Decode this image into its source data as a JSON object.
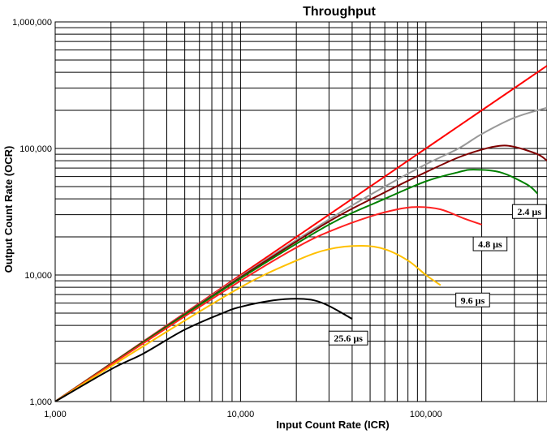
{
  "chart_data": {
    "type": "line",
    "title": "Throughput",
    "xlabel": "Input Count Rate (ICR)",
    "ylabel": "Output Count Rate (OCR)",
    "xscale": "log",
    "yscale": "log",
    "xlim": [
      1000,
      450000
    ],
    "ylim": [
      1000,
      1000000
    ],
    "grid": true,
    "x_tick_labels": [
      "1,000",
      "10,000",
      "100,000"
    ],
    "x_tick_values": [
      1000,
      10000,
      100000
    ],
    "y_tick_labels": [
      "1,000",
      "10,000",
      "100,000",
      "1,000,000"
    ],
    "y_tick_values": [
      1000,
      10000,
      100000,
      1000000
    ],
    "series": [
      {
        "color": "#ff0000",
        "x": [
          1000,
          3000,
          10000,
          30000,
          100000,
          200000,
          450000
        ],
        "y": [
          1000,
          3000,
          10000,
          30000,
          100000,
          200000,
          450000
        ]
      },
      {
        "color": "#999999",
        "x": [
          1000,
          3000,
          10000,
          30000,
          60000,
          100000,
          150000,
          200000,
          300000,
          450000
        ],
        "y": [
          1000,
          2980,
          9750,
          27500,
          50000,
          75000,
          100000,
          130000,
          175000,
          210000
        ]
      },
      {
        "color": "#800000",
        "x": [
          1000,
          3000,
          10000,
          30000,
          60000,
          100000,
          150000,
          200000,
          250000,
          300000,
          400000,
          450000
        ],
        "y": [
          1000,
          2970,
          9600,
          26500,
          45000,
          65000,
          85000,
          98000,
          105000,
          103000,
          90000,
          80000
        ]
      },
      {
        "color": "#008000",
        "x": [
          1000,
          3000,
          10000,
          30000,
          60000,
          100000,
          150000,
          180000,
          250000,
          350000,
          400000
        ],
        "y": [
          1000,
          2950,
          9400,
          25000,
          40000,
          55000,
          65000,
          68000,
          65000,
          52000,
          44000
        ]
      },
      {
        "color": "#ff2020",
        "x": [
          1000,
          3000,
          10000,
          20000,
          30000,
          50000,
          70000,
          90000,
          120000,
          160000,
          200000
        ],
        "y": [
          1000,
          2900,
          9000,
          16500,
          22000,
          29000,
          33000,
          34500,
          33000,
          28000,
          25000
        ]
      },
      {
        "color": "#ffc000",
        "x": [
          1000,
          3000,
          10000,
          20000,
          30000,
          45000,
          60000,
          80000,
          100000,
          120000
        ],
        "y": [
          1000,
          2750,
          8000,
          13000,
          16000,
          17000,
          16000,
          13000,
          10000,
          8300
        ]
      },
      {
        "color": "#000000",
        "x": [
          1000,
          2000,
          3000,
          5000,
          8000,
          10000,
          15000,
          20000,
          25000,
          30000,
          40000
        ],
        "y": [
          1000,
          1800,
          2400,
          3700,
          5000,
          5600,
          6300,
          6500,
          6300,
          5700,
          4500
        ]
      }
    ],
    "annotations": [
      {
        "text": "2.4 µs",
        "x": 420000,
        "y": 36000
      },
      {
        "text": "4.8 µs",
        "x": 180000,
        "y": 20000
      },
      {
        "text": "9.6 µs",
        "x": 145000,
        "y": 7200
      },
      {
        "text": "25.6 µs",
        "x": 30000,
        "y": 3600
      }
    ]
  }
}
